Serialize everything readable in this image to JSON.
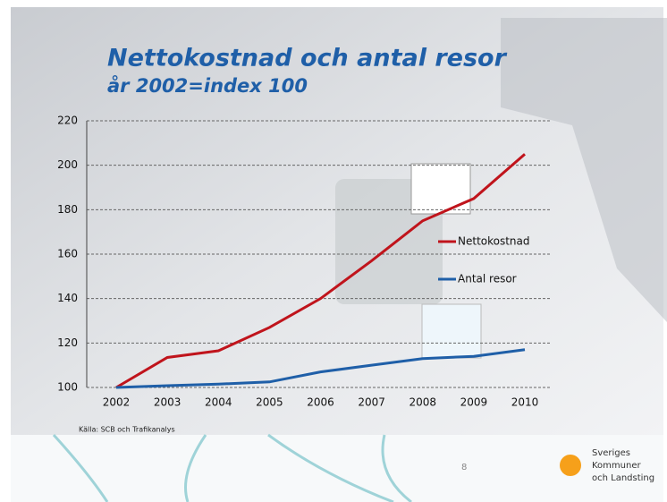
{
  "chart_data": {
    "type": "line",
    "title": "Nettokostnad och antal resor",
    "subtitle": "år 2002=index 100",
    "categories": [
      "2002",
      "2003",
      "2004",
      "2005",
      "2006",
      "2007",
      "2008",
      "2009",
      "2010"
    ],
    "series": [
      {
        "name": "Nettokostnad",
        "color": "#c0141c",
        "values": [
          100,
          113.5,
          116.5,
          127,
          140,
          157,
          175,
          185,
          205
        ]
      },
      {
        "name": "Antal resor",
        "color": "#1f5fa8",
        "values": [
          100,
          100.8,
          101.5,
          102.5,
          107,
          110,
          113,
          114,
          117
        ]
      }
    ],
    "ylim": [
      100,
      220
    ],
    "yticks": [
      100,
      120,
      140,
      160,
      180,
      200,
      220
    ],
    "grid": true,
    "source": "Källa: SCB och Trafikanalys",
    "page_number": "8",
    "logo": [
      "Sveriges",
      "Kommuner",
      "och Landsting"
    ]
  }
}
